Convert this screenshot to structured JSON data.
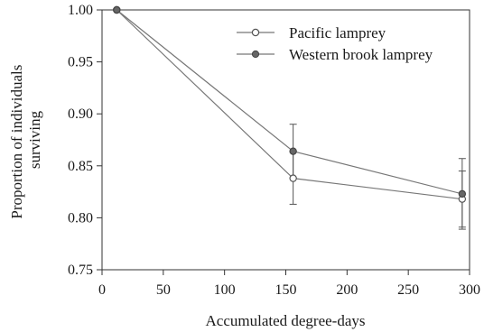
{
  "chart_data": {
    "type": "line",
    "xlabel": "Accumulated degree-days",
    "ylabel": "Proportion of individuals surviving",
    "ylabel_lines": [
      "Proportion of individuals",
      "surviving"
    ],
    "xlim": [
      0,
      300
    ],
    "ylim": [
      0.75,
      1.0
    ],
    "xticks": [
      0,
      50,
      100,
      150,
      200,
      250,
      300
    ],
    "yticks": [
      0.75,
      0.8,
      0.85,
      0.9,
      0.95,
      1.0
    ],
    "xtick_labels": [
      "0",
      "50",
      "100",
      "150",
      "200",
      "250",
      "300"
    ],
    "ytick_labels": [
      "0.75",
      "0.80",
      "0.85",
      "0.90",
      "0.95",
      "1.00"
    ],
    "grid": false,
    "legend_position": "top-right",
    "series": [
      {
        "name": "Pacific lamprey",
        "marker": "open-circle",
        "color": "#777777",
        "x": [
          12,
          156,
          294
        ],
        "y": [
          1.0,
          0.838,
          0.818
        ],
        "error": [
          0,
          0.025,
          0.027
        ]
      },
      {
        "name": "Western brook lamprey",
        "marker": "filled-circle",
        "color": "#777777",
        "x": [
          12,
          156,
          294
        ],
        "y": [
          1.0,
          0.864,
          0.823
        ],
        "error": [
          0,
          0.026,
          0.034
        ]
      }
    ]
  }
}
